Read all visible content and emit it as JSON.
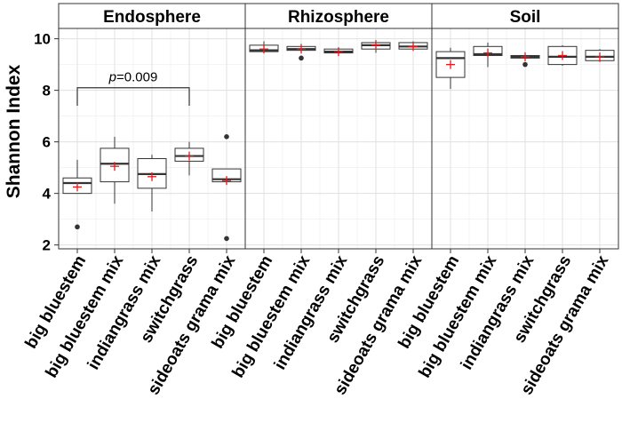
{
  "chart_data": {
    "type": "boxplot",
    "ylabel": "Shannon Index",
    "xlabel": "",
    "ylim": [
      1.85,
      10.4
    ],
    "yticks": [
      2,
      4,
      6,
      8,
      10
    ],
    "grid": true,
    "mean_marker_color": "#e31a1c",
    "categories": [
      "big bluestem",
      "big bluestem mix",
      "indiangrass mix",
      "switchgrass",
      "sideoats grama mix"
    ],
    "panels": [
      {
        "name": "Endosphere",
        "boxes": [
          {
            "category": "big bluestem",
            "q1": 4.0,
            "median": 4.4,
            "q3": 4.6,
            "whisker_low": 4.0,
            "whisker_high": 5.3,
            "mean": 4.25,
            "outliers": [
              2.7
            ]
          },
          {
            "category": "big bluestem mix",
            "q1": 4.45,
            "median": 5.15,
            "q3": 5.75,
            "whisker_low": 3.6,
            "whisker_high": 6.2,
            "mean": 5.05,
            "outliers": []
          },
          {
            "category": "indiangrass mix",
            "q1": 4.2,
            "median": 4.75,
            "q3": 5.35,
            "whisker_low": 3.3,
            "whisker_high": 5.5,
            "mean": 4.65,
            "outliers": []
          },
          {
            "category": "switchgrass",
            "q1": 5.25,
            "median": 5.45,
            "q3": 5.75,
            "whisker_low": 4.7,
            "whisker_high": 6.0,
            "mean": 5.45,
            "outliers": []
          },
          {
            "category": "sideoats grama mix",
            "q1": 4.45,
            "median": 4.55,
            "q3": 4.95,
            "whisker_low": 4.45,
            "whisker_high": 4.95,
            "mean": 4.5,
            "outliers": [
              6.2,
              2.25
            ]
          }
        ],
        "annotation": {
          "label_italic": "p",
          "label_rest": "=0.009",
          "from": "big bluestem",
          "to": "switchgrass",
          "y": 8.1,
          "drop_to": 7.4
        }
      },
      {
        "name": "Rhizosphere",
        "boxes": [
          {
            "category": "big bluestem",
            "q1": 9.5,
            "median": 9.55,
            "q3": 9.75,
            "whisker_low": 9.45,
            "whisker_high": 9.9,
            "mean": 9.6,
            "outliers": []
          },
          {
            "category": "big bluestem mix",
            "q1": 9.55,
            "median": 9.6,
            "q3": 9.7,
            "whisker_low": 9.5,
            "whisker_high": 9.8,
            "mean": 9.6,
            "outliers": [
              9.25
            ]
          },
          {
            "category": "indiangrass mix",
            "q1": 9.45,
            "median": 9.5,
            "q3": 9.6,
            "whisker_low": 9.4,
            "whisker_high": 9.65,
            "mean": 9.5,
            "outliers": []
          },
          {
            "category": "switchgrass",
            "q1": 9.6,
            "median": 9.75,
            "q3": 9.85,
            "whisker_low": 9.45,
            "whisker_high": 9.95,
            "mean": 9.75,
            "outliers": []
          },
          {
            "category": "sideoats grama mix",
            "q1": 9.6,
            "median": 9.7,
            "q3": 9.85,
            "whisker_low": 9.55,
            "whisker_high": 9.9,
            "mean": 9.7,
            "outliers": []
          }
        ]
      },
      {
        "name": "Soil",
        "boxes": [
          {
            "category": "big bluestem",
            "q1": 8.5,
            "median": 9.25,
            "q3": 9.5,
            "whisker_low": 8.05,
            "whisker_high": 9.65,
            "mean": 9.0,
            "outliers": []
          },
          {
            "category": "big bluestem mix",
            "q1": 9.35,
            "median": 9.4,
            "q3": 9.7,
            "whisker_low": 8.9,
            "whisker_high": 9.85,
            "mean": 9.45,
            "outliers": []
          },
          {
            "category": "indiangrass mix",
            "q1": 9.25,
            "median": 9.3,
            "q3": 9.35,
            "whisker_low": 9.2,
            "whisker_high": 9.4,
            "mean": 9.3,
            "outliers": [
              9.0
            ]
          },
          {
            "category": "switchgrass",
            "q1": 9.0,
            "median": 9.3,
            "q3": 9.7,
            "whisker_low": 8.95,
            "whisker_high": 9.75,
            "mean": 9.35,
            "outliers": []
          },
          {
            "category": "sideoats grama mix",
            "q1": 9.15,
            "median": 9.3,
            "q3": 9.55,
            "whisker_low": 9.1,
            "whisker_high": 9.6,
            "mean": 9.3,
            "outliers": []
          }
        ]
      }
    ]
  }
}
